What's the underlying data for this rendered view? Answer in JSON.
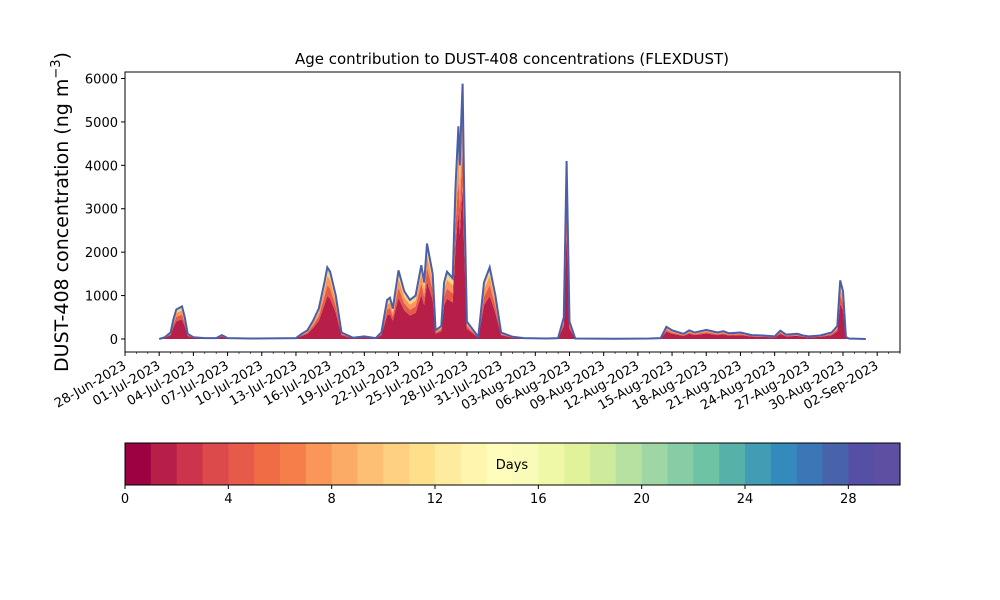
{
  "chart_data": {
    "type": "area",
    "title": "Age contribution to DUST-408 concentrations (FLEXDUST)",
    "ylabel_main": "DUST-408 concentration (ng m",
    "ylabel_sup": "−3",
    "ylabel_close": ")",
    "ylim": [
      -300,
      6150
    ],
    "yticks": [
      0,
      1000,
      2000,
      3000,
      4000,
      5000,
      6000
    ],
    "x_range": [
      "2023-06-28",
      "2023-09-04"
    ],
    "xtick_labels": [
      "28-Jun-2023",
      "01-Jul-2023",
      "04-Jul-2023",
      "07-Jul-2023",
      "10-Jul-2023",
      "13-Jul-2023",
      "16-Jul-2023",
      "19-Jul-2023",
      "22-Jul-2023",
      "25-Jul-2023",
      "28-Jul-2023",
      "31-Jul-2023",
      "03-Aug-2023",
      "06-Aug-2023",
      "09-Aug-2023",
      "12-Aug-2023",
      "15-Aug-2023",
      "18-Aug-2023",
      "21-Aug-2023",
      "24-Aug-2023",
      "27-Aug-2023",
      "30-Aug-2023",
      "02-Sep-2023"
    ],
    "series_total": {
      "color": "#4a5fa8",
      "points": [
        [
          "2023-07-01",
          0
        ],
        [
          "2023-07-01T12",
          40
        ],
        [
          "2023-07-02",
          150
        ],
        [
          "2023-07-02T06",
          450
        ],
        [
          "2023-07-02T12",
          680
        ],
        [
          "2023-07-03",
          750
        ],
        [
          "2023-07-03T06",
          500
        ],
        [
          "2023-07-03T12",
          120
        ],
        [
          "2023-07-04",
          40
        ],
        [
          "2023-07-05",
          20
        ],
        [
          "2023-07-06",
          20
        ],
        [
          "2023-07-06T12",
          90
        ],
        [
          "2023-07-07",
          20
        ],
        [
          "2023-07-09",
          10
        ],
        [
          "2023-07-12",
          15
        ],
        [
          "2023-07-13",
          20
        ],
        [
          "2023-07-13T12",
          120
        ],
        [
          "2023-07-14",
          200
        ],
        [
          "2023-07-14T12",
          420
        ],
        [
          "2023-07-15",
          700
        ],
        [
          "2023-07-15T12",
          1300
        ],
        [
          "2023-07-15T18",
          1650
        ],
        [
          "2023-07-16",
          1550
        ],
        [
          "2023-07-16T12",
          1000
        ],
        [
          "2023-07-17",
          150
        ],
        [
          "2023-07-18",
          30
        ],
        [
          "2023-07-19",
          60
        ],
        [
          "2023-07-20",
          20
        ],
        [
          "2023-07-20T12",
          150
        ],
        [
          "2023-07-21",
          900
        ],
        [
          "2023-07-21T06",
          950
        ],
        [
          "2023-07-21T12",
          700
        ],
        [
          "2023-07-22",
          1580
        ],
        [
          "2023-07-22T12",
          1100
        ],
        [
          "2023-07-23",
          900
        ],
        [
          "2023-07-23T12",
          1000
        ],
        [
          "2023-07-24",
          1700
        ],
        [
          "2023-07-24T06",
          1300
        ],
        [
          "2023-07-24T12",
          2200
        ],
        [
          "2023-07-25",
          1500
        ],
        [
          "2023-07-25T06",
          200
        ],
        [
          "2023-07-25T18",
          300
        ],
        [
          "2023-07-26",
          1300
        ],
        [
          "2023-07-26T06",
          1550
        ],
        [
          "2023-07-26T18",
          1400
        ],
        [
          "2023-07-27",
          3500
        ],
        [
          "2023-07-27T06",
          4900
        ],
        [
          "2023-07-27T09",
          4000
        ],
        [
          "2023-07-27T12",
          5000
        ],
        [
          "2023-07-27T15",
          5880
        ],
        [
          "2023-07-27T18",
          3500
        ],
        [
          "2023-07-28",
          400
        ],
        [
          "2023-07-29",
          50
        ],
        [
          "2023-07-29T12",
          1300
        ],
        [
          "2023-07-30",
          1650
        ],
        [
          "2023-07-30T12",
          1000
        ],
        [
          "2023-07-31",
          150
        ],
        [
          "2023-08-01",
          50
        ],
        [
          "2023-08-02",
          20
        ],
        [
          "2023-08-04",
          10
        ],
        [
          "2023-08-05",
          20
        ],
        [
          "2023-08-05T12",
          500
        ],
        [
          "2023-08-05T18",
          4100
        ],
        [
          "2023-08-06",
          400
        ],
        [
          "2023-08-06T12",
          10
        ],
        [
          "2023-08-10",
          5
        ],
        [
          "2023-08-13",
          10
        ],
        [
          "2023-08-14",
          20
        ],
        [
          "2023-08-14T12",
          280
        ],
        [
          "2023-08-15",
          200
        ],
        [
          "2023-08-16",
          120
        ],
        [
          "2023-08-16T12",
          200
        ],
        [
          "2023-08-17",
          150
        ],
        [
          "2023-08-18",
          210
        ],
        [
          "2023-08-19",
          150
        ],
        [
          "2023-08-19T12",
          180
        ],
        [
          "2023-08-20",
          130
        ],
        [
          "2023-08-21",
          150
        ],
        [
          "2023-08-22",
          90
        ],
        [
          "2023-08-23",
          80
        ],
        [
          "2023-08-24",
          60
        ],
        [
          "2023-08-24T12",
          190
        ],
        [
          "2023-08-25",
          100
        ],
        [
          "2023-08-26",
          120
        ],
        [
          "2023-08-26T12",
          80
        ],
        [
          "2023-08-27",
          60
        ],
        [
          "2023-08-28",
          80
        ],
        [
          "2023-08-29",
          150
        ],
        [
          "2023-08-29T12",
          300
        ],
        [
          "2023-08-29T18",
          1350
        ],
        [
          "2023-08-30",
          1100
        ],
        [
          "2023-08-30T06",
          50
        ],
        [
          "2023-08-30T12",
          10
        ],
        [
          "2023-09-01",
          0
        ]
      ]
    },
    "age_fractions": [
      0.6,
      0.75,
      0.88,
      0.95
    ],
    "colorbar": {
      "label": "Days",
      "min": 0,
      "max": 30,
      "ticks": [
        0,
        4,
        8,
        12,
        16,
        20,
        24,
        28
      ],
      "colors": [
        "#9e0142",
        "#b71e48",
        "#cc334d",
        "#dc4a4c",
        "#e55a49",
        "#ef6c45",
        "#f57e4b",
        "#f99658",
        "#fbab65",
        "#fdbf71",
        "#fed082",
        "#fee08b",
        "#feeb9d",
        "#fff5ae",
        "#fffdbc",
        "#f8fcb8",
        "#eff8a6",
        "#e1f29a",
        "#cdea9d",
        "#b6e1a1",
        "#9fd7a4",
        "#86cda5",
        "#6dc3a4",
        "#57b1ab",
        "#429db4",
        "#3489bd",
        "#3d76b6",
        "#4963ab",
        "#5550a5",
        "#5e4fa2"
      ]
    }
  }
}
